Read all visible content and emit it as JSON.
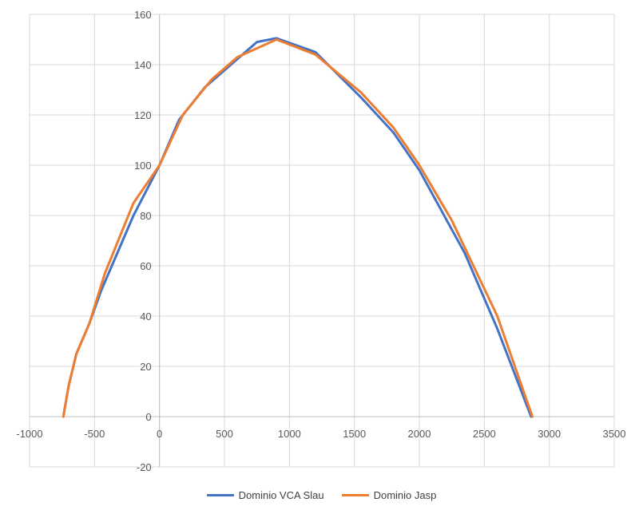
{
  "chart_data": {
    "type": "scatter",
    "title": "",
    "xlabel": "",
    "ylabel": "",
    "xlim": [
      -1000,
      3500
    ],
    "ylim": [
      -20,
      160
    ],
    "x_ticks": [
      -1000,
      -500,
      0,
      500,
      1000,
      1500,
      2000,
      2500,
      3000,
      3500
    ],
    "y_ticks": [
      -20,
      0,
      20,
      40,
      60,
      80,
      100,
      120,
      140,
      160
    ],
    "grid": true,
    "legend_position": "bottom",
    "series": [
      {
        "name": "Dominio VCA Slau",
        "color": "#4472C4",
        "points": [
          [
            -740,
            0
          ],
          [
            -700,
            12
          ],
          [
            -640,
            25
          ],
          [
            -540,
            37
          ],
          [
            -450,
            50
          ],
          [
            -200,
            80
          ],
          [
            0,
            100
          ],
          [
            150,
            118
          ],
          [
            350,
            131
          ],
          [
            550,
            140
          ],
          [
            750,
            149
          ],
          [
            900,
            150.5
          ],
          [
            1200,
            145
          ],
          [
            1550,
            127
          ],
          [
            1800,
            113
          ],
          [
            2000,
            98
          ],
          [
            2350,
            65
          ],
          [
            2600,
            35
          ],
          [
            2860,
            0
          ]
        ]
      },
      {
        "name": "Dominio Jasp",
        "color": "#ED7D31",
        "points": [
          [
            -740,
            0
          ],
          [
            -700,
            12
          ],
          [
            -640,
            25
          ],
          [
            -540,
            37
          ],
          [
            -420,
            57
          ],
          [
            -200,
            85
          ],
          [
            0,
            100
          ],
          [
            180,
            120
          ],
          [
            400,
            134
          ],
          [
            600,
            143
          ],
          [
            900,
            150
          ],
          [
            1200,
            144
          ],
          [
            1550,
            129
          ],
          [
            1800,
            115
          ],
          [
            2000,
            100
          ],
          [
            2250,
            78
          ],
          [
            2600,
            40
          ],
          [
            2870,
            0
          ]
        ]
      }
    ]
  }
}
